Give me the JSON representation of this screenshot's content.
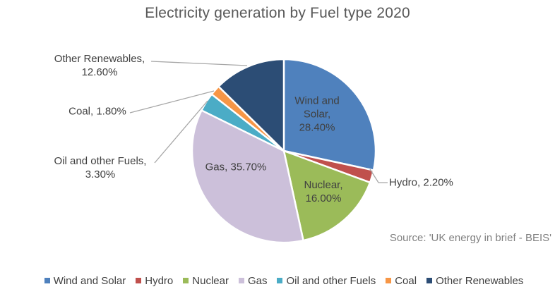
{
  "chart_data": {
    "type": "pie",
    "title": "Electricity generation by Fuel type 2020",
    "source_note": "Source: 'UK energy in brief - BEIS'",
    "unit": "%",
    "start_angle_deg": 0,
    "direction": "clockwise",
    "legend_position": "bottom",
    "slices": [
      {
        "label": "Wind and Solar",
        "value": 28.4,
        "display": "Wind and Solar, 28.40%",
        "label_lines": [
          "Wind and",
          "Solar,",
          "28.40%"
        ],
        "label_placement": "inside",
        "color": "#4F81BD"
      },
      {
        "label": "Hydro",
        "value": 2.2,
        "display": "Hydro, 2.20%",
        "label_lines": [
          "Hydro, 2.20%"
        ],
        "label_placement": "outside",
        "color": "#C0504D"
      },
      {
        "label": "Nuclear",
        "value": 16.0,
        "display": "Nuclear, 16.00%",
        "label_lines": [
          "Nuclear,",
          "16.00%"
        ],
        "label_placement": "inside",
        "color": "#9BBB59"
      },
      {
        "label": "Gas",
        "value": 35.7,
        "display": "Gas, 35.70%",
        "label_lines": [
          "Gas, 35.70%"
        ],
        "label_placement": "inside",
        "color": "#CCC0DA"
      },
      {
        "label": "Oil and other Fuels",
        "value": 3.3,
        "display": "Oil and other Fuels, 3.30%",
        "label_lines": [
          "Oil and other Fuels,",
          "3.30%"
        ],
        "label_placement": "outside",
        "color": "#4BACC6"
      },
      {
        "label": "Coal",
        "value": 1.8,
        "display": "Coal, 1.80%",
        "label_lines": [
          "Coal, 1.80%"
        ],
        "label_placement": "outside",
        "color": "#F79646"
      },
      {
        "label": "Other Renewables",
        "value": 12.6,
        "display": "Other Renewables, 12.60%",
        "label_lines": [
          "Other Renewables,",
          "12.60%"
        ],
        "label_placement": "outside",
        "color": "#2C4D75"
      }
    ],
    "colors": {
      "title_text": "#595959",
      "label_text": "#404040",
      "source_text": "#7F7F7F",
      "leader_line": "#A6A6A6",
      "slice_border": "#FFFFFF",
      "background": "#FFFFFF"
    }
  }
}
